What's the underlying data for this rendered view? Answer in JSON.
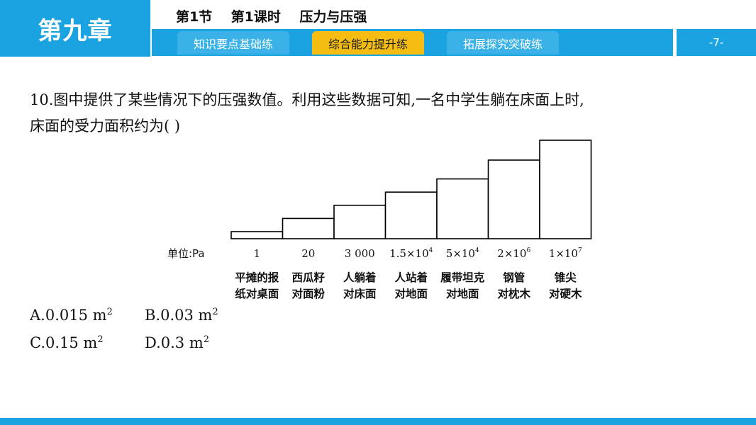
{
  "header": {
    "chapter": "第九章",
    "title": "第1节    第1课时    压力与压强",
    "page": "-7-"
  },
  "tabs": [
    {
      "label": "知识要点基础练",
      "active": false
    },
    {
      "label": "综合能力提升练",
      "active": true
    },
    {
      "label": "拓展探究突破练",
      "active": false
    }
  ],
  "question": {
    "line1": "10.图中提供了某些情况下的压强数值。利用这些数据可知,一名中学生躺在床面上时,",
    "line2": "床面的受力面积约为(      )"
  },
  "chart_data": {
    "type": "bar",
    "unit_label": "单位:Pa",
    "categories": [
      {
        "line1": "平摊的报",
        "line2": "纸对桌面"
      },
      {
        "line1": "西瓜籽",
        "line2": "对面粉"
      },
      {
        "line1": "人躺着",
        "line2": "对床面"
      },
      {
        "line1": "人站着",
        "line2": "对地面"
      },
      {
        "line1": "履带坦克",
        "line2": "对地面"
      },
      {
        "line1": "钢管",
        "line2": "对枕木"
      },
      {
        "line1": "锥尖",
        "line2": "对硬木"
      }
    ],
    "values": [
      1,
      20,
      3000,
      15000,
      50000,
      2000000,
      10000000
    ],
    "value_labels": [
      {
        "base": "1",
        "exp": ""
      },
      {
        "base": "20",
        "exp": ""
      },
      {
        "base": "3 000",
        "exp": ""
      },
      {
        "base": "1.5×10",
        "exp": "4"
      },
      {
        "base": "5×10",
        "exp": "4"
      },
      {
        "base": "2×10",
        "exp": "6"
      },
      {
        "base": "1×10",
        "exp": "7"
      }
    ],
    "bar_levels": [
      1,
      2,
      3,
      4,
      5,
      6,
      7
    ]
  },
  "options": [
    {
      "text": "A.0.015 m",
      "exp": "2"
    },
    {
      "text": "B.0.03 m",
      "exp": "2"
    },
    {
      "text": "C.0.15 m",
      "exp": "2"
    },
    {
      "text": "D.0.3 m",
      "exp": "2"
    }
  ]
}
